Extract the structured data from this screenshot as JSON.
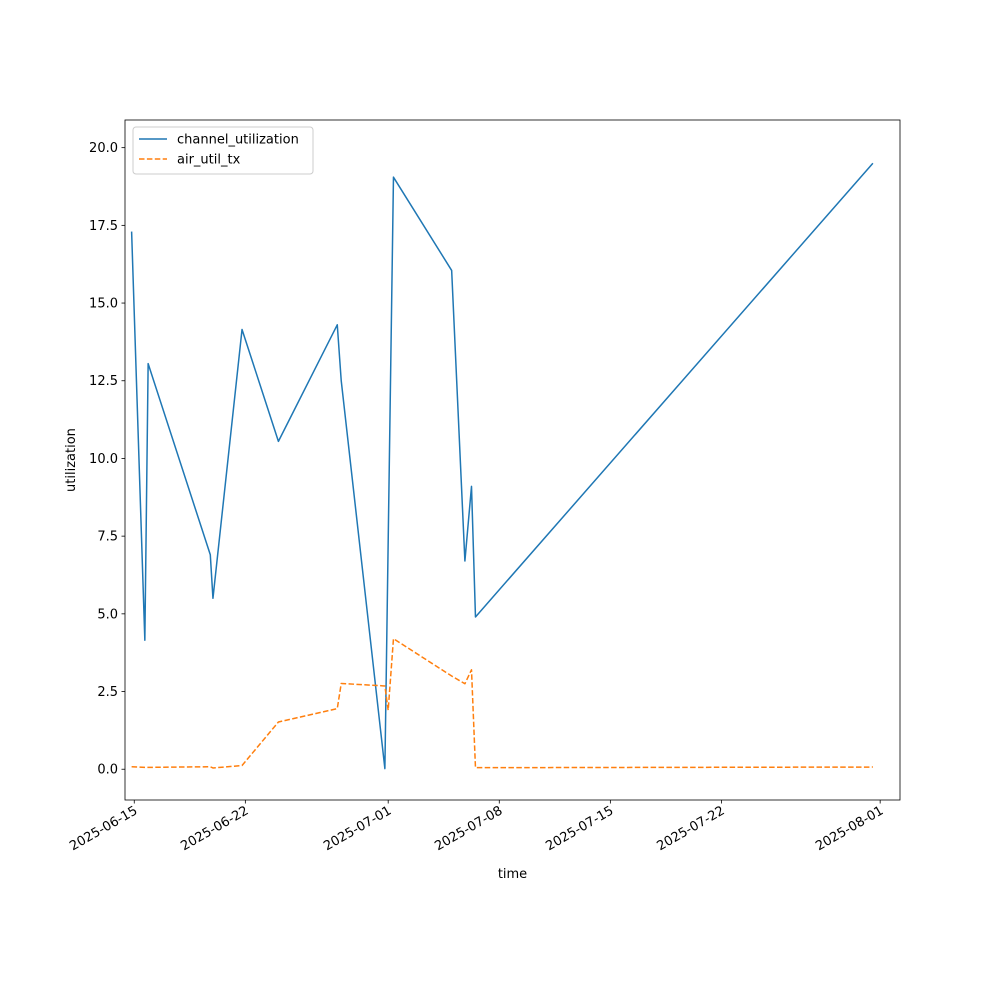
{
  "chart_data": {
    "type": "line",
    "title": "",
    "xlabel": "time",
    "ylabel": "utilization",
    "x_axis_type": "date",
    "xlim": [
      "2025-06-14T10:00",
      "2025-08-02T06:00"
    ],
    "ylim": [
      -0.99,
      20.89
    ],
    "x_ticks": [
      "2025-06-15",
      "2025-06-22",
      "2025-07-01",
      "2025-07-08",
      "2025-07-15",
      "2025-07-22",
      "2025-08-01"
    ],
    "y_ticks": [
      0.0,
      2.5,
      5.0,
      7.5,
      10.0,
      12.5,
      15.0,
      17.5,
      20.0
    ],
    "y_tick_labels": [
      "0.0",
      "2.5",
      "5.0",
      "7.5",
      "10.0",
      "12.5",
      "15.0",
      "17.5",
      "20.0"
    ],
    "grid": false,
    "legend_position": "upper left",
    "series": [
      {
        "name": "channel_utilization",
        "color": "#1f77b4",
        "dash": "solid",
        "points": [
          [
            "2025-06-14T20:00",
            17.3
          ],
          [
            "2025-06-15T16:00",
            4.15
          ],
          [
            "2025-06-15T21:00",
            13.05
          ],
          [
            "2025-06-19T19:00",
            6.9
          ],
          [
            "2025-06-19T23:00",
            5.5
          ],
          [
            "2025-06-21T19:00",
            14.15
          ],
          [
            "2025-06-24T02:00",
            10.55
          ],
          [
            "2025-06-27T19:00",
            14.3
          ],
          [
            "2025-06-28T01:00",
            12.5
          ],
          [
            "2025-06-30T19:00",
            0.02
          ],
          [
            "2025-07-01T08:00",
            19.05
          ],
          [
            "2025-07-05T00:00",
            16.05
          ],
          [
            "2025-07-05T20:00",
            6.7
          ],
          [
            "2025-07-06T06:00",
            9.1
          ],
          [
            "2025-07-06T12:00",
            4.9
          ],
          [
            "2025-07-31T13:00",
            19.5
          ]
        ]
      },
      {
        "name": "air_util_tx",
        "color": "#ff7f0e",
        "dash": "dashed",
        "points": [
          [
            "2025-06-14T20:00",
            0.08
          ],
          [
            "2025-06-15T16:00",
            0.06
          ],
          [
            "2025-06-15T21:00",
            0.06
          ],
          [
            "2025-06-19T19:00",
            0.08
          ],
          [
            "2025-06-19T23:00",
            0.04
          ],
          [
            "2025-06-21T19:00",
            0.12
          ],
          [
            "2025-06-24T02:00",
            1.52
          ],
          [
            "2025-06-27T19:00",
            1.95
          ],
          [
            "2025-06-28T01:00",
            2.76
          ],
          [
            "2025-06-30T19:00",
            2.68
          ],
          [
            "2025-07-01T00:00",
            1.9
          ],
          [
            "2025-07-01T08:00",
            4.2
          ],
          [
            "2025-07-05T00:00",
            3.0
          ],
          [
            "2025-07-05T20:00",
            2.75
          ],
          [
            "2025-07-06T06:00",
            3.2
          ],
          [
            "2025-07-06T12:00",
            0.05
          ],
          [
            "2025-07-31T13:00",
            0.07
          ]
        ]
      }
    ]
  }
}
